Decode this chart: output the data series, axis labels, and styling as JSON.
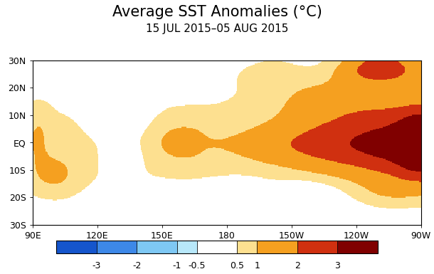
{
  "title": "Average SST Anomalies (°C)",
  "subtitle": "15 JUL 2015–05 AUG 2015",
  "lon_min": 90,
  "lon_max": 270,
  "lat_min": -30,
  "lat_max": 30,
  "xticks_geo": [
    90,
    120,
    150,
    180,
    210,
    240,
    270
  ],
  "xtick_labels": [
    "90E",
    "120E",
    "150E",
    "180",
    "150W",
    "120W",
    "90W"
  ],
  "yticks": [
    -30,
    -20,
    -10,
    0,
    10,
    20,
    30
  ],
  "ytick_labels": [
    "30S",
    "20S",
    "10S",
    "EQ",
    "10N",
    "20N",
    "30N"
  ],
  "colorbar_levels": [
    -4,
    -3,
    -2,
    -1,
    -0.5,
    0.5,
    1,
    2,
    3,
    4
  ],
  "colorbar_colors": [
    "#1555cc",
    "#3d88e8",
    "#7ec8f4",
    "#b8e8fa",
    "#ffffff",
    "#fde090",
    "#f5a020",
    "#d03010",
    "#800000"
  ],
  "colorbar_ticks": [
    -3,
    -2,
    -1,
    -0.5,
    0.5,
    1,
    2,
    3
  ],
  "title_fontsize": 15,
  "subtitle_fontsize": 11,
  "tick_fontsize": 9,
  "background_color": "#ffffff"
}
